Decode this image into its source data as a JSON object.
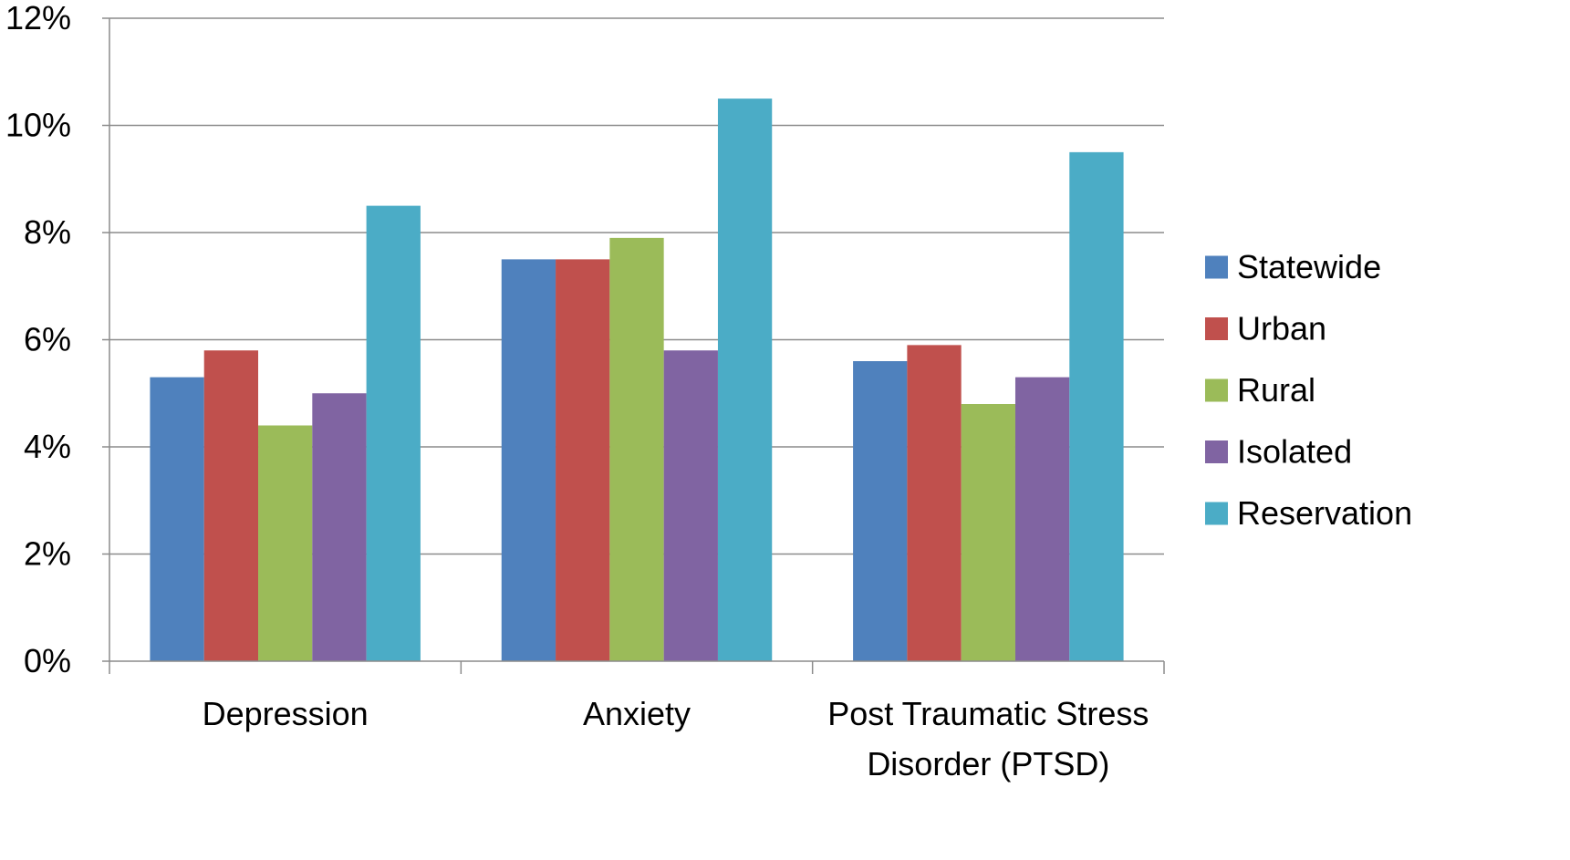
{
  "chart_data": {
    "type": "bar",
    "title": "",
    "xlabel": "",
    "ylabel": "",
    "categories": [
      [
        "Depression"
      ],
      [
        "Anxiety"
      ],
      [
        "Post Traumatic Stress",
        "Disorder (PTSD)"
      ]
    ],
    "series": [
      {
        "name": "Statewide",
        "color": "#4f81bd",
        "values": [
          5.3,
          7.5,
          5.6
        ]
      },
      {
        "name": "Urban",
        "color": "#c0504d",
        "values": [
          5.8,
          7.5,
          5.9
        ]
      },
      {
        "name": "Rural",
        "color": "#9bbb59",
        "values": [
          4.4,
          7.9,
          4.8
        ]
      },
      {
        "name": "Isolated",
        "color": "#8064a2",
        "values": [
          5.0,
          5.8,
          5.3
        ]
      },
      {
        "name": "Reservation",
        "color": "#4bacc6",
        "values": [
          8.5,
          10.5,
          9.5
        ]
      }
    ],
    "ylim": [
      0,
      12
    ],
    "yticks": [
      0,
      2,
      4,
      6,
      8,
      10,
      12
    ],
    "ytick_labels": [
      "0%",
      "2%",
      "4%",
      "6%",
      "8%",
      "10%",
      "12%"
    ],
    "grid": true,
    "legend_position": "right"
  }
}
